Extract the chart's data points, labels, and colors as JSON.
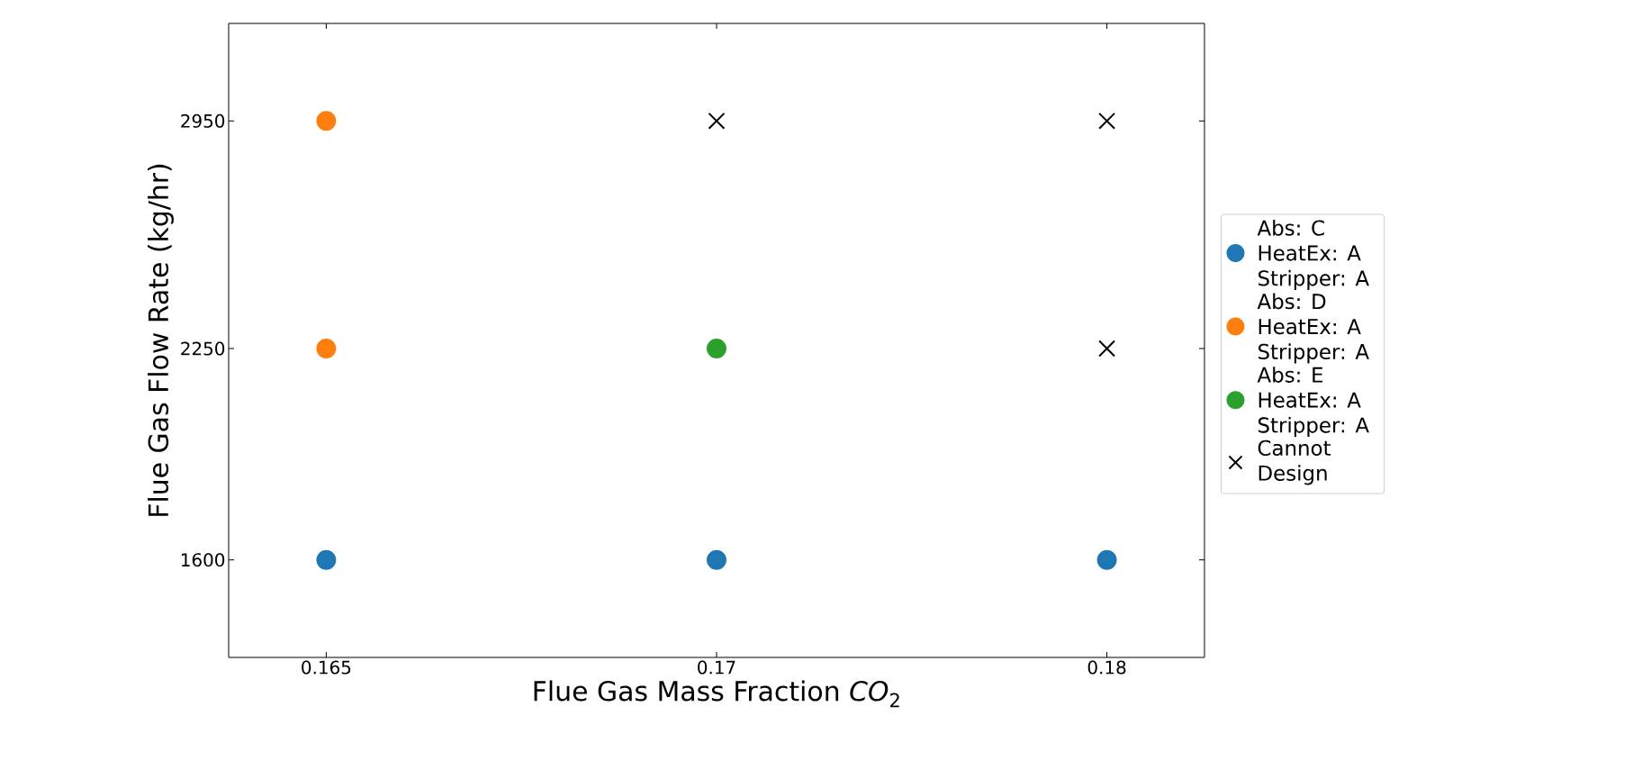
{
  "chart_data": {
    "type": "scatter",
    "xlabel": "Flue Gas Mass Fraction *CO*$_{2}$",
    "ylabel": "Flue Gas Flow Rate (kg/hr)",
    "categories": [
      "0.165",
      "0.17",
      "0.18"
    ],
    "ylim": [
      1300,
      3250
    ],
    "yticks": [
      1600,
      2250,
      2950
    ],
    "legend": "right",
    "grid": false,
    "series": [
      {
        "name": "Abs: C HeatEx: A Stripper: A",
        "color": "#1f77b4",
        "marker": "circle",
        "x": [
          "0.165",
          "0.17",
          "0.18"
        ],
        "values": [
          1600,
          1600,
          1600
        ]
      },
      {
        "name": "Abs: D HeatEx: A Stripper: A",
        "color": "#ff7f0e",
        "marker": "circle",
        "x": [
          "0.165",
          "0.165"
        ],
        "values": [
          2950,
          2250
        ]
      },
      {
        "name": "Abs: E HeatEx: A Stripper: A",
        "color": "#2ca02c",
        "marker": "circle",
        "x": [
          "0.17"
        ],
        "values": [
          2250
        ]
      },
      {
        "name": "Cannot Design",
        "color": "#000000",
        "marker": "cross",
        "x": [
          "0.17",
          "0.18",
          "0.18"
        ],
        "values": [
          2950,
          2950,
          2250
        ]
      }
    ]
  }
}
